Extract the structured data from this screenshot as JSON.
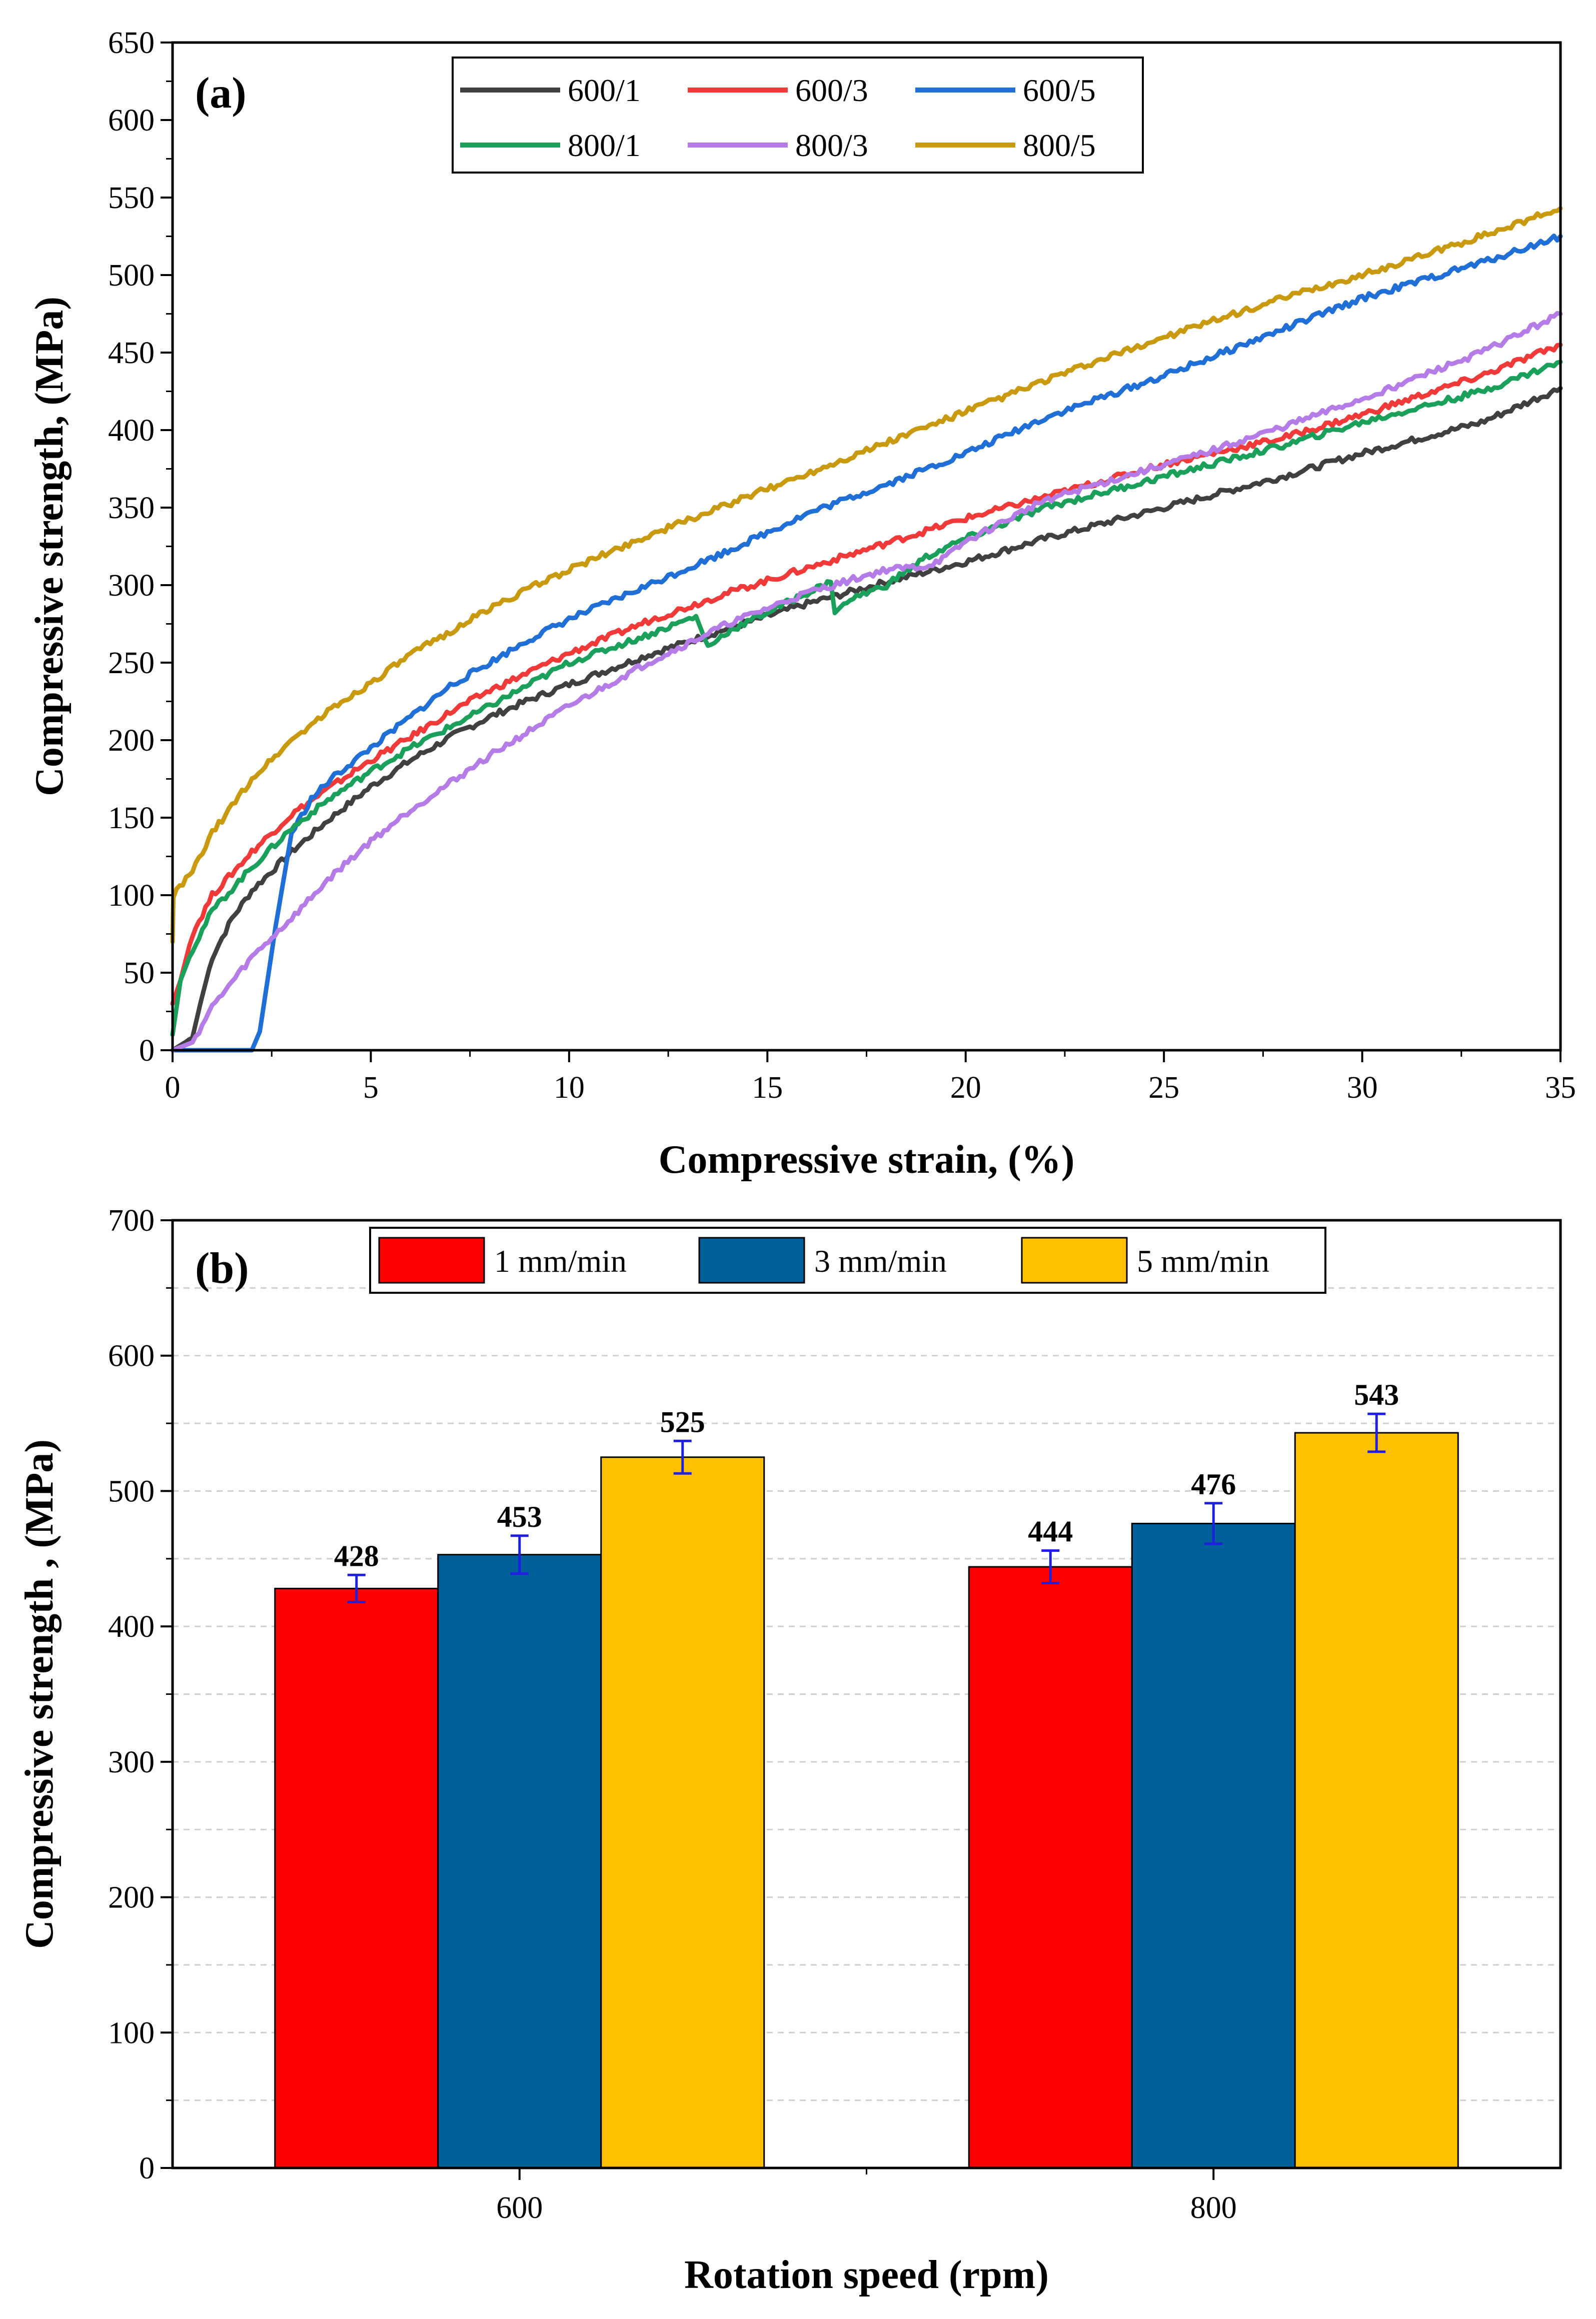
{
  "chart_data": [
    {
      "type": "line",
      "panel_label": "(a)",
      "xlabel": "Compressive strain, (%)",
      "ylabel": "Compressive strength, (MPa)",
      "xlim": [
        0,
        35
      ],
      "ylim": [
        0,
        650
      ],
      "xticks": [
        0,
        5,
        10,
        15,
        20,
        25,
        30,
        35
      ],
      "yticks": [
        0,
        50,
        100,
        150,
        200,
        250,
        300,
        350,
        400,
        450,
        500,
        550,
        600,
        650
      ],
      "legend_position": "top",
      "series": [
        {
          "name": "600/1",
          "color": "#404040",
          "x": [
            0,
            0.5,
            0.7,
            1,
            1.5,
            2,
            3,
            4,
            5,
            6,
            7,
            8,
            9,
            10,
            12,
            14,
            16,
            18,
            20,
            22,
            25,
            28,
            30,
            33,
            35
          ],
          "y": [
            0,
            8,
            30,
            60,
            85,
            103,
            128,
            150,
            170,
            187,
            202,
            215,
            226,
            236,
            255,
            272,
            288,
            302,
            315,
            330,
            350,
            370,
            385,
            405,
            427
          ]
        },
        {
          "name": "600/3",
          "color": "#f03a3a",
          "x": [
            0,
            0.2,
            0.5,
            1,
            2,
            3,
            4,
            5,
            6,
            7,
            8,
            9,
            10,
            12,
            14,
            16,
            18,
            20,
            22,
            25,
            28,
            30,
            33,
            35
          ],
          "y": [
            30,
            45,
            75,
            100,
            128,
            152,
            170,
            187,
            202,
            218,
            232,
            244,
            256,
            277,
            295,
            311,
            327,
            343,
            357,
            378,
            395,
            410,
            435,
            455
          ]
        },
        {
          "name": "600/5",
          "color": "#1f6fd6",
          "x": [
            0,
            1,
            2,
            2.2,
            2.6,
            3,
            3.5,
            4,
            5,
            6,
            7,
            8,
            9,
            10,
            12,
            14,
            16,
            18,
            20,
            22,
            25,
            28,
            30,
            33,
            35
          ],
          "y": [
            0,
            0,
            0,
            12,
            80,
            140,
            162,
            175,
            195,
            215,
            235,
            250,
            265,
            278,
            300,
            322,
            346,
            365,
            385,
            408,
            435,
            465,
            485,
            508,
            525
          ]
        },
        {
          "name": "800/1",
          "color": "#1aa05a",
          "x": [
            0,
            0.2,
            0.5,
            1,
            2,
            3,
            4,
            5,
            6,
            8,
            10,
            12,
            13.2,
            13.5,
            14,
            16,
            16.6,
            16.7,
            17,
            18,
            19,
            20,
            22,
            25,
            28,
            30,
            33,
            35
          ],
          "y": [
            10,
            45,
            65,
            90,
            118,
            143,
            163,
            180,
            195,
            222,
            250,
            268,
            280,
            260,
            270,
            295,
            302,
            282,
            290,
            300,
            318,
            330,
            350,
            370,
            390,
            405,
            425,
            444
          ]
        },
        {
          "name": "800/3",
          "color": "#b57ce8",
          "x": [
            0,
            0.5,
            1,
            2,
            3,
            4,
            5,
            6,
            8,
            10,
            12,
            14,
            16,
            18,
            19,
            19.5,
            20,
            22,
            24,
            26,
            28,
            30,
            33,
            35
          ],
          "y": [
            0,
            5,
            28,
            60,
            85,
            112,
            135,
            155,
            190,
            222,
            250,
            275,
            295,
            310,
            312,
            318,
            328,
            355,
            370,
            385,
            402,
            420,
            450,
            475
          ]
        },
        {
          "name": "800/5",
          "color": "#c99a10",
          "x": [
            0,
            0.02,
            0.5,
            1,
            2,
            3,
            4,
            5,
            6,
            7,
            8,
            9,
            10,
            12,
            14,
            16,
            18,
            20,
            22,
            25,
            28,
            30,
            33,
            35
          ],
          "y": [
            70,
            100,
            115,
            140,
            175,
            200,
            220,
            237,
            255,
            270,
            285,
            298,
            310,
            332,
            352,
            372,
            392,
            412,
            432,
            460,
            485,
            500,
            525,
            543
          ]
        }
      ]
    },
    {
      "type": "bar",
      "panel_label": "(b)",
      "xlabel": "Rotation speed (rpm)",
      "ylabel": "Compressive strength , (MPa)",
      "categories": [
        "600",
        "800"
      ],
      "ylim": [
        0,
        700
      ],
      "yticks": [
        0,
        100,
        200,
        300,
        400,
        500,
        600,
        700
      ],
      "legend_position": "top",
      "series": [
        {
          "name": "1 mm/min",
          "color": "#ff0000",
          "values": [
            428,
            444
          ],
          "errors": [
            10,
            12
          ],
          "labels": [
            "428",
            "444"
          ]
        },
        {
          "name": "3 mm/min",
          "color": "#00609a",
          "values": [
            453,
            476
          ],
          "errors": [
            14,
            15
          ],
          "labels": [
            "453",
            "476"
          ]
        },
        {
          "name": "5 mm/min",
          "color": "#ffc000",
          "values": [
            525,
            543
          ],
          "errors": [
            12,
            14
          ],
          "labels": [
            "525",
            "543"
          ]
        }
      ]
    }
  ]
}
